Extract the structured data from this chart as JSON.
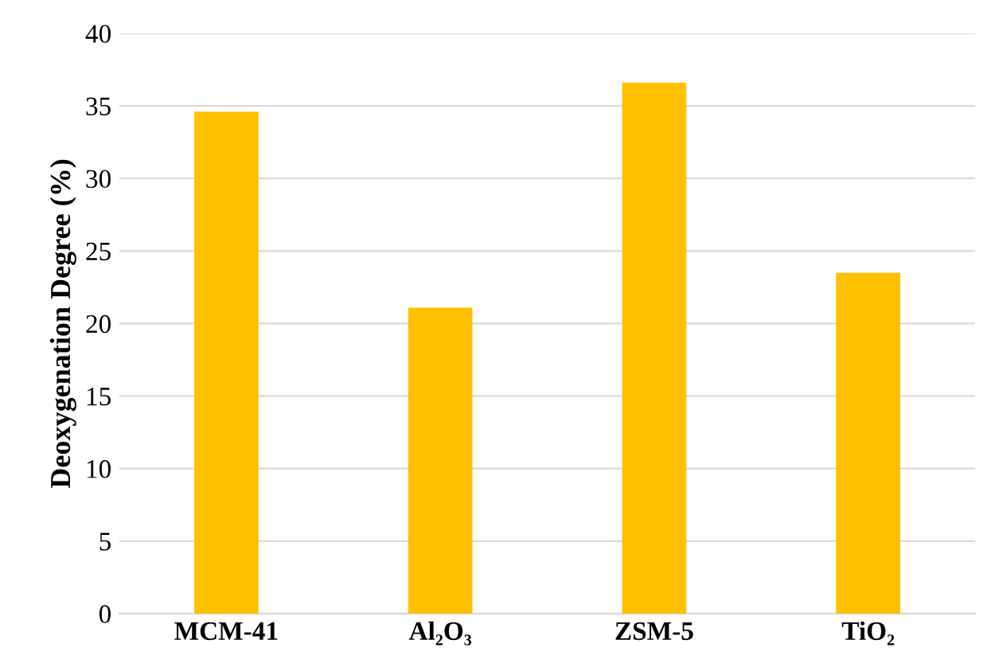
{
  "chart_data": {
    "type": "bar",
    "ylabel": "Deoxygenation Degree (%)",
    "categories": [
      "MCM-41",
      "Al₂O₃",
      "ZSM-5",
      "TiO₂"
    ],
    "values": [
      34.6,
      21.1,
      36.6,
      23.5
    ],
    "color": "#ffc000",
    "ylim": [
      0,
      40
    ],
    "yticks": [
      0,
      5,
      10,
      15,
      20,
      25,
      30,
      35,
      40
    ],
    "grid": "y",
    "legend": false
  }
}
